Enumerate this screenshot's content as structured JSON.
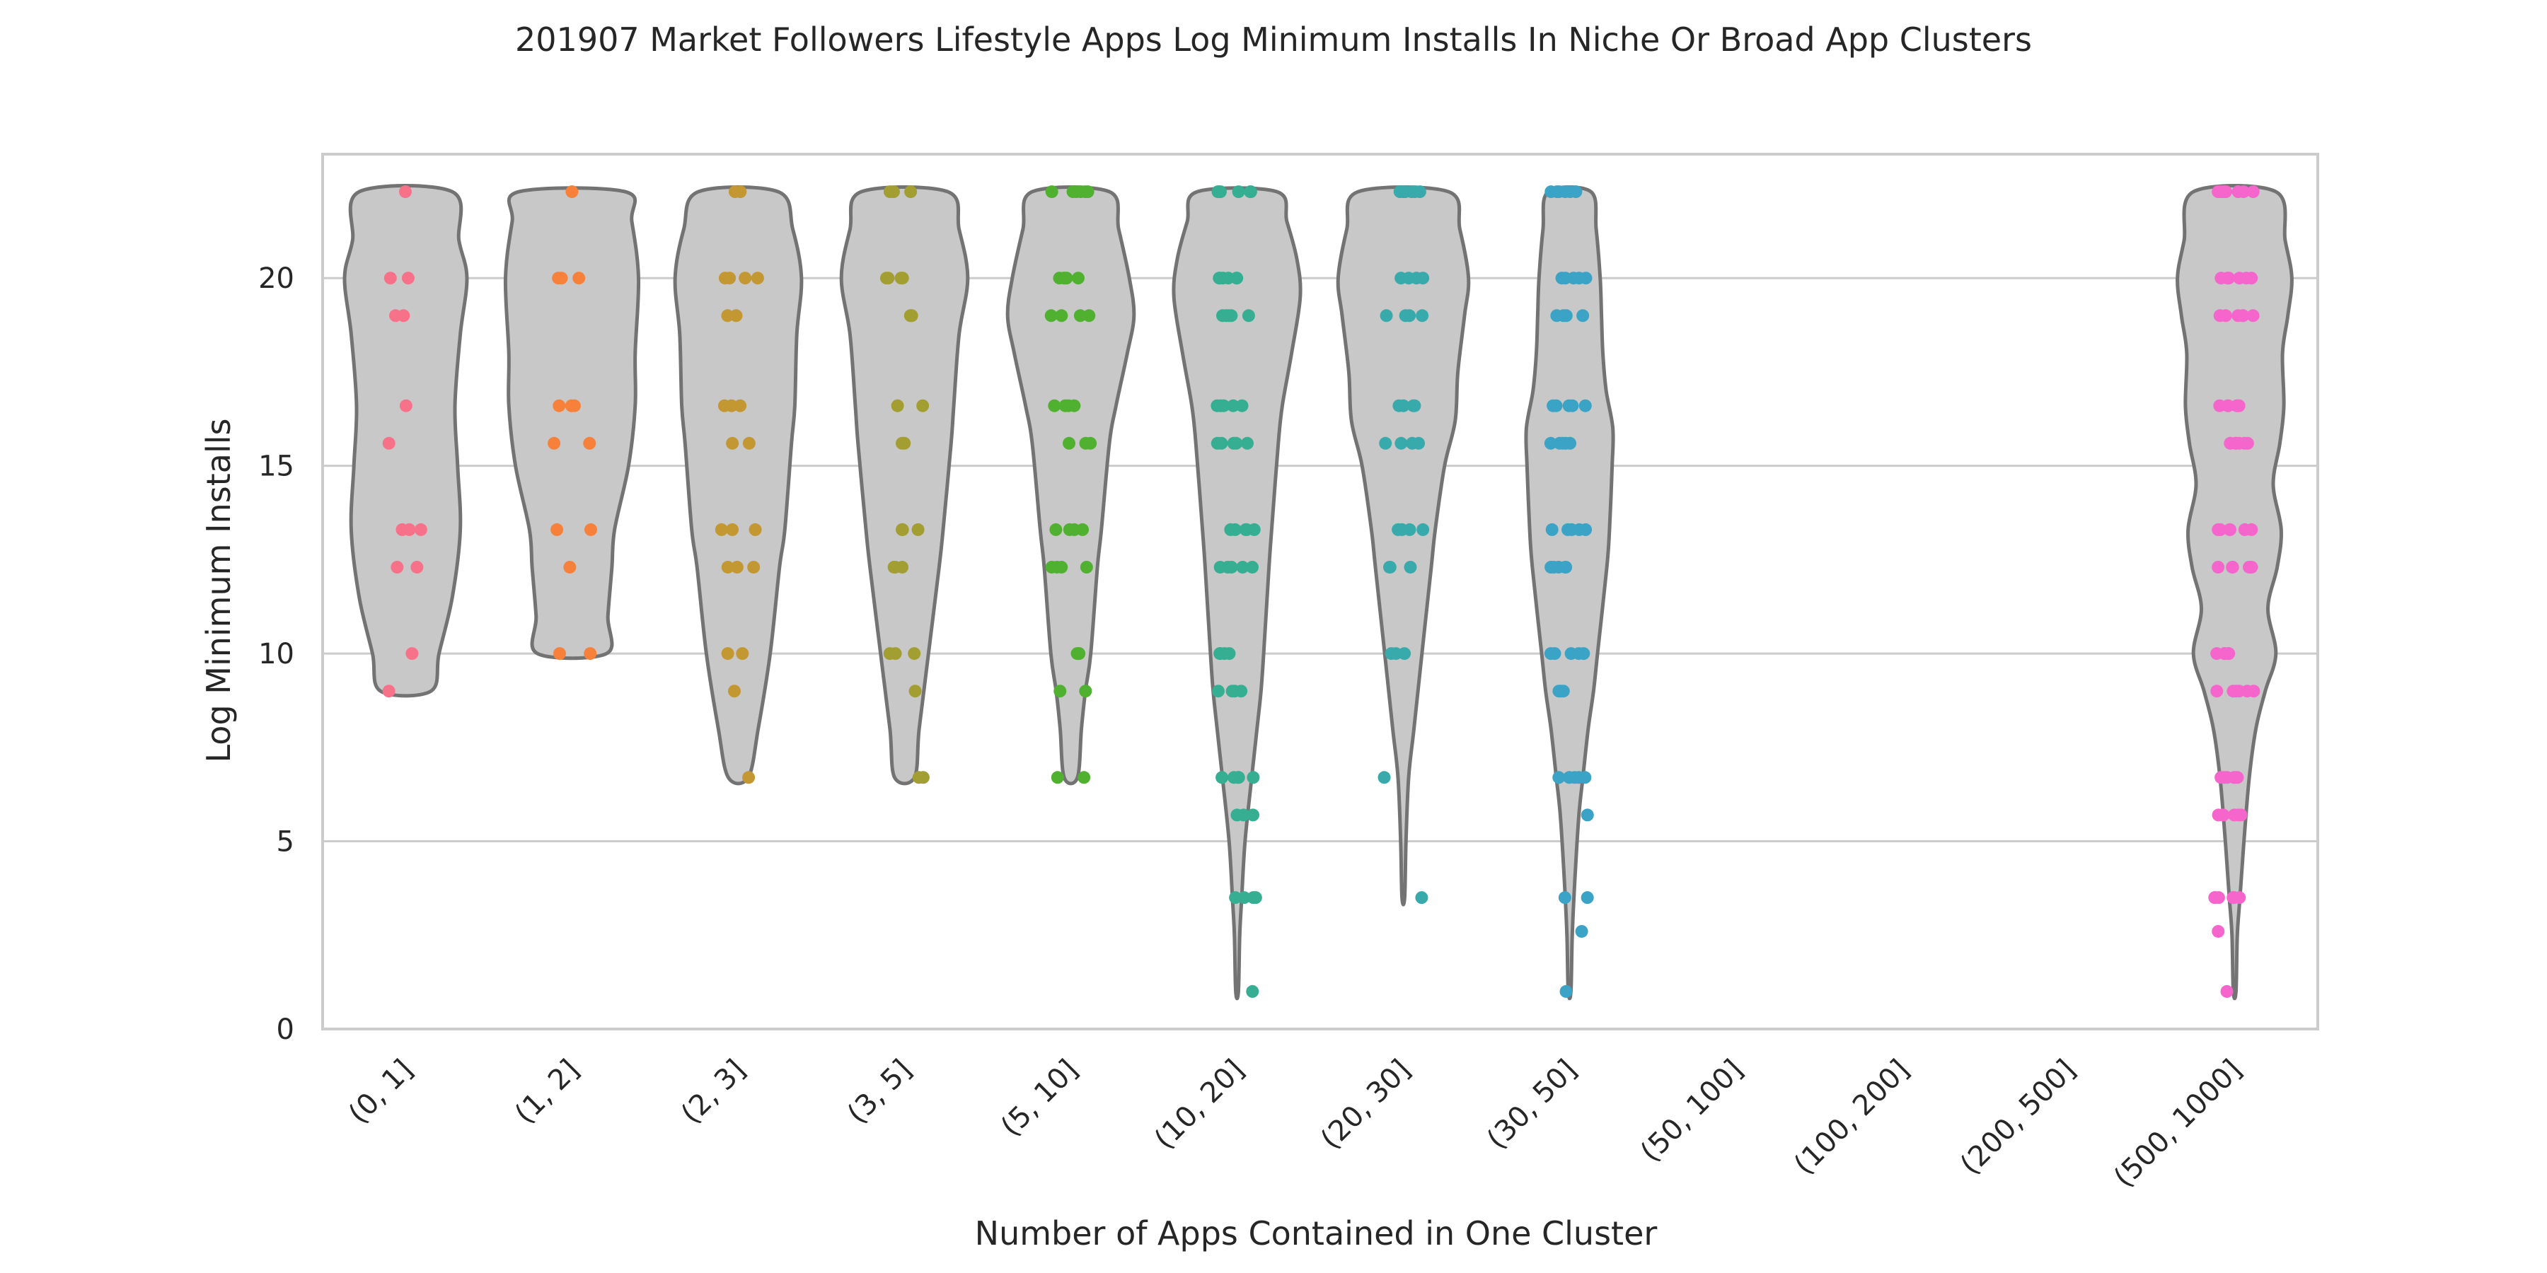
{
  "chart_data": {
    "type": "violin",
    "title": "201907 Market Followers Lifestyle Apps Log Minimum Installs In Niche Or Broad App Clusters",
    "xlabel": "Number of Apps Contained in One Cluster",
    "ylabel": "Log Minimum Installs",
    "ylim": [
      0,
      23.3
    ],
    "yticks": [
      0,
      5,
      10,
      15,
      20
    ],
    "grid": "horizontal",
    "categories": [
      "(0, 1]",
      "(1, 2]",
      "(2, 3]",
      "(3, 5]",
      "(5, 10]",
      "(10, 20]",
      "(20, 30]",
      "(30, 50]",
      "(50, 100]",
      "(100, 200]",
      "(200, 500]",
      "(500, 1000]"
    ],
    "colors": [
      "#f77189",
      "#f7813a",
      "#c39732",
      "#a39e31",
      "#50b131",
      "#35ae92",
      "#38aaac",
      "#3ba3c5",
      "#6e9bf4",
      "#a48cf4",
      "#f461dd",
      "#f565cc"
    ],
    "violins": [
      {
        "category": "(0, 1]",
        "min": 9.0,
        "max": 22.3,
        "profile": [
          [
            9.0,
            0.38
          ],
          [
            10.0,
            0.5
          ],
          [
            11.5,
            0.7
          ],
          [
            13.3,
            0.82
          ],
          [
            15.0,
            0.78
          ],
          [
            16.6,
            0.74
          ],
          [
            18.5,
            0.82
          ],
          [
            20.0,
            0.92
          ],
          [
            21.0,
            0.8
          ],
          [
            22.3,
            0.7
          ]
        ],
        "points": [
          22.3,
          20.0,
          20.0,
          19.0,
          19.0,
          16.6,
          15.6,
          13.3,
          13.3,
          13.3,
          12.3,
          12.3,
          10.0,
          9.0
        ]
      },
      {
        "category": "(1, 2]",
        "min": 10.0,
        "max": 22.3,
        "profile": [
          [
            10.0,
            0.52
          ],
          [
            11.0,
            0.54
          ],
          [
            12.3,
            0.6
          ],
          [
            13.3,
            0.64
          ],
          [
            15.0,
            0.85
          ],
          [
            16.6,
            0.95
          ],
          [
            18.0,
            0.95
          ],
          [
            20.0,
            1.0
          ],
          [
            21.5,
            0.9
          ],
          [
            22.3,
            0.8
          ]
        ],
        "points": [
          22.3,
          20.0,
          20.0,
          20.0,
          16.6,
          16.6,
          16.6,
          15.6,
          15.6,
          13.3,
          13.3,
          12.3,
          10.0,
          10.0
        ]
      },
      {
        "category": "(2, 3]",
        "min": 6.7,
        "max": 22.3,
        "profile": [
          [
            6.7,
            0.15
          ],
          [
            8.0,
            0.3
          ],
          [
            10.0,
            0.48
          ],
          [
            12.3,
            0.62
          ],
          [
            13.3,
            0.7
          ],
          [
            15.6,
            0.8
          ],
          [
            16.6,
            0.85
          ],
          [
            18.5,
            0.88
          ],
          [
            20.0,
            0.95
          ],
          [
            21.3,
            0.82
          ],
          [
            22.3,
            0.6
          ]
        ],
        "points": [
          22.3,
          22.3,
          20.0,
          20.0,
          20.0,
          20.0,
          19.0,
          19.0,
          16.6,
          16.6,
          16.6,
          15.6,
          15.6,
          13.3,
          13.3,
          13.3,
          12.3,
          12.3,
          12.3,
          10.0,
          10.0,
          9.0,
          6.7
        ]
      },
      {
        "category": "(3, 5]",
        "min": 6.7,
        "max": 22.3,
        "profile": [
          [
            6.7,
            0.15
          ],
          [
            8.0,
            0.22
          ],
          [
            10.0,
            0.36
          ],
          [
            12.3,
            0.52
          ],
          [
            13.3,
            0.58
          ],
          [
            15.6,
            0.7
          ],
          [
            16.6,
            0.74
          ],
          [
            18.5,
            0.82
          ],
          [
            20.0,
            0.95
          ],
          [
            21.3,
            0.82
          ],
          [
            22.3,
            0.65
          ]
        ],
        "points": [
          22.3,
          22.3,
          22.3,
          20.0,
          20.0,
          20.0,
          20.0,
          19.0,
          19.0,
          16.6,
          16.6,
          15.6,
          15.6,
          13.3,
          13.3,
          13.3,
          12.3,
          12.3,
          12.3,
          10.0,
          10.0,
          10.0,
          9.0,
          6.7,
          6.7
        ]
      },
      {
        "category": "(5, 10]",
        "min": 6.7,
        "max": 22.3,
        "profile": [
          [
            6.7,
            0.1
          ],
          [
            8.0,
            0.16
          ],
          [
            9.0,
            0.22
          ],
          [
            10.0,
            0.3
          ],
          [
            12.3,
            0.4
          ],
          [
            13.3,
            0.46
          ],
          [
            15.6,
            0.58
          ],
          [
            16.6,
            0.68
          ],
          [
            18.0,
            0.85
          ],
          [
            19.0,
            0.95
          ],
          [
            20.0,
            0.88
          ],
          [
            21.3,
            0.72
          ],
          [
            22.3,
            0.58
          ]
        ],
        "points": [
          22.3,
          22.3,
          22.3,
          22.3,
          22.3,
          22.3,
          20.0,
          20.0,
          20.0,
          20.0,
          20.0,
          19.0,
          19.0,
          19.0,
          19.0,
          16.6,
          16.6,
          16.6,
          16.6,
          15.6,
          15.6,
          15.6,
          13.3,
          13.3,
          13.3,
          13.3,
          12.3,
          12.3,
          12.3,
          12.3,
          10.0,
          10.0,
          10.0,
          9.0,
          9.0,
          6.7,
          6.7
        ]
      },
      {
        "category": "(10, 20]",
        "min": 1.0,
        "max": 22.3,
        "profile": [
          [
            1.0,
            0.02
          ],
          [
            2.5,
            0.04
          ],
          [
            3.5,
            0.07
          ],
          [
            5.0,
            0.12
          ],
          [
            6.7,
            0.22
          ],
          [
            8.0,
            0.3
          ],
          [
            9.0,
            0.36
          ],
          [
            10.0,
            0.4
          ],
          [
            12.3,
            0.48
          ],
          [
            13.3,
            0.52
          ],
          [
            15.6,
            0.62
          ],
          [
            16.6,
            0.68
          ],
          [
            18.0,
            0.82
          ],
          [
            19.5,
            0.95
          ],
          [
            20.5,
            0.9
          ],
          [
            21.5,
            0.75
          ],
          [
            22.3,
            0.6
          ]
        ],
        "points": [
          22.3,
          22.3,
          22.3,
          22.3,
          22.3,
          22.3,
          20.0,
          20.0,
          20.0,
          20.0,
          20.0,
          20.0,
          19.0,
          19.0,
          19.0,
          19.0,
          19.0,
          16.6,
          16.6,
          16.6,
          16.6,
          16.6,
          15.6,
          15.6,
          15.6,
          15.6,
          15.6,
          13.3,
          13.3,
          13.3,
          13.3,
          13.3,
          12.3,
          12.3,
          12.3,
          12.3,
          12.3,
          10.0,
          10.0,
          10.0,
          10.0,
          9.0,
          9.0,
          9.0,
          9.0,
          6.7,
          6.7,
          6.7,
          6.7,
          6.7,
          5.7,
          5.7,
          5.7,
          3.5,
          3.5,
          3.5,
          3.5,
          1.0
        ]
      },
      {
        "category": "(20, 30]",
        "min": 3.5,
        "max": 22.3,
        "profile": [
          [
            3.5,
            0.02
          ],
          [
            5.0,
            0.04
          ],
          [
            6.7,
            0.08
          ],
          [
            8.0,
            0.16
          ],
          [
            10.0,
            0.28
          ],
          [
            12.3,
            0.42
          ],
          [
            13.3,
            0.48
          ],
          [
            15.0,
            0.62
          ],
          [
            16.2,
            0.78
          ],
          [
            17.5,
            0.82
          ],
          [
            19.0,
            0.92
          ],
          [
            20.0,
            0.98
          ],
          [
            21.3,
            0.85
          ],
          [
            22.3,
            0.68
          ]
        ],
        "points": [
          22.3,
          22.3,
          22.3,
          22.3,
          22.3,
          22.3,
          20.0,
          20.0,
          20.0,
          20.0,
          19.0,
          19.0,
          19.0,
          19.0,
          16.6,
          16.6,
          16.6,
          16.6,
          15.6,
          15.6,
          15.6,
          15.6,
          13.3,
          13.3,
          13.3,
          13.3,
          12.3,
          12.3,
          12.3,
          10.0,
          10.0,
          10.0,
          6.7,
          3.5
        ]
      },
      {
        "category": "(30, 50]",
        "min": 1.0,
        "max": 22.3,
        "profile": [
          [
            1.0,
            0.02
          ],
          [
            2.5,
            0.04
          ],
          [
            4.0,
            0.08
          ],
          [
            5.7,
            0.14
          ],
          [
            6.7,
            0.2
          ],
          [
            8.0,
            0.28
          ],
          [
            9.0,
            0.36
          ],
          [
            10.0,
            0.42
          ],
          [
            12.3,
            0.56
          ],
          [
            13.3,
            0.6
          ],
          [
            15.0,
            0.64
          ],
          [
            16.0,
            0.65
          ],
          [
            17.0,
            0.55
          ],
          [
            18.0,
            0.5
          ],
          [
            19.0,
            0.48
          ],
          [
            20.0,
            0.46
          ],
          [
            21.3,
            0.4
          ],
          [
            22.3,
            0.32
          ]
        ],
        "points": [
          22.3,
          22.3,
          22.3,
          22.3,
          22.3,
          22.3,
          20.0,
          20.0,
          20.0,
          20.0,
          20.0,
          19.0,
          19.0,
          19.0,
          19.0,
          16.6,
          16.6,
          16.6,
          16.6,
          16.6,
          15.6,
          15.6,
          15.6,
          15.6,
          15.6,
          13.3,
          13.3,
          13.3,
          13.3,
          13.3,
          12.3,
          12.3,
          12.3,
          12.3,
          12.3,
          10.0,
          10.0,
          10.0,
          10.0,
          10.0,
          9.0,
          9.0,
          9.0,
          6.7,
          6.7,
          6.7,
          6.7,
          6.7,
          5.7,
          3.5,
          3.5,
          2.6,
          1.0
        ]
      },
      {
        "category": "(500, 1000]",
        "min": 1.0,
        "max": 22.3,
        "profile": [
          [
            1.0,
            0.02
          ],
          [
            2.5,
            0.04
          ],
          [
            3.5,
            0.08
          ],
          [
            5.0,
            0.14
          ],
          [
            6.7,
            0.22
          ],
          [
            8.0,
            0.32
          ],
          [
            9.0,
            0.46
          ],
          [
            10.0,
            0.62
          ],
          [
            11.2,
            0.5
          ],
          [
            12.3,
            0.64
          ],
          [
            13.3,
            0.7
          ],
          [
            14.5,
            0.58
          ],
          [
            15.6,
            0.68
          ],
          [
            16.6,
            0.74
          ],
          [
            18.0,
            0.72
          ],
          [
            19.0,
            0.8
          ],
          [
            20.0,
            0.86
          ],
          [
            21.0,
            0.76
          ],
          [
            22.3,
            0.62
          ]
        ],
        "points": [
          22.3,
          22.3,
          22.3,
          22.3,
          22.3,
          22.3,
          22.3,
          20.0,
          20.0,
          20.0,
          20.0,
          20.0,
          20.0,
          19.0,
          19.0,
          19.0,
          19.0,
          19.0,
          19.0,
          16.6,
          16.6,
          16.6,
          16.6,
          16.6,
          16.6,
          15.6,
          15.6,
          15.6,
          15.6,
          15.6,
          15.6,
          13.3,
          13.3,
          13.3,
          13.3,
          13.3,
          13.3,
          12.3,
          12.3,
          12.3,
          12.3,
          12.3,
          12.3,
          10.0,
          10.0,
          10.0,
          10.0,
          10.0,
          10.0,
          9.0,
          9.0,
          9.0,
          9.0,
          9.0,
          9.0,
          6.7,
          6.7,
          6.7,
          6.7,
          6.7,
          6.7,
          5.7,
          5.7,
          5.7,
          5.7,
          5.7,
          3.5,
          3.5,
          3.5,
          3.5,
          3.5,
          3.5,
          2.6,
          1.0
        ]
      }
    ]
  }
}
